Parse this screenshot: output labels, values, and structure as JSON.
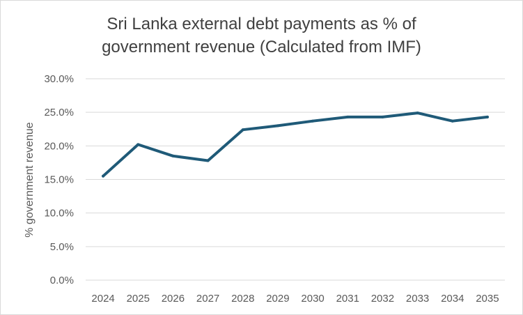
{
  "chart_data": {
    "type": "line",
    "title_lines": [
      "Sri Lanka external debt payments as % of",
      "government revenue (Calculated from IMF)"
    ],
    "xlabel": "",
    "ylabel": "% government revenue",
    "categories": [
      "2024",
      "2025",
      "2026",
      "2027",
      "2028",
      "2029",
      "2030",
      "2031",
      "2032",
      "2033",
      "2034",
      "2035"
    ],
    "series": [
      {
        "values": [
          15.5,
          20.2,
          18.5,
          17.8,
          22.4,
          23.0,
          23.7,
          24.3,
          24.3,
          24.9,
          23.7,
          24.3
        ],
        "color": "#1f5a78"
      }
    ],
    "y_ticks": [
      "0.0%",
      "5.0%",
      "10.0%",
      "15.0%",
      "20.0%",
      "25.0%",
      "30.0%"
    ],
    "y_tick_values": [
      0,
      5,
      10,
      15,
      20,
      25,
      30
    ],
    "ylim": [
      0,
      30
    ],
    "grid": true,
    "legend": "none",
    "gridline_color": "#d9d9d9"
  }
}
